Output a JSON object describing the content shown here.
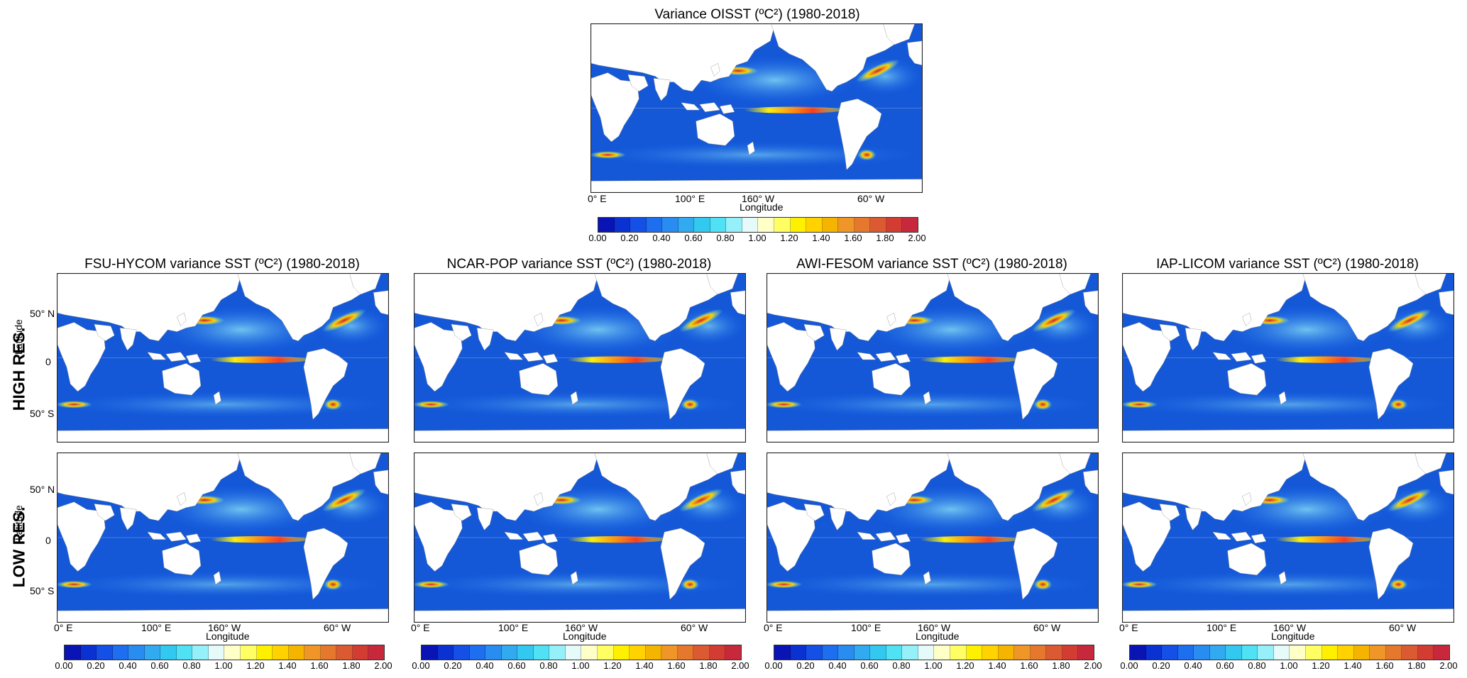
{
  "top_panel": {
    "title": "Variance OISST (ºC²) (1980-2018)",
    "x_ticks": [
      "0° E",
      "100° E",
      "160° W",
      "60° W"
    ],
    "x_label": "Longitude"
  },
  "panels": [
    {
      "id": "fsu-hycom",
      "title": "FSU-HYCOM variance SST (ºC²) (1980-2018)"
    },
    {
      "id": "ncar-pop",
      "title": "NCAR-POP variance SST (ºC²) (1980-2018)"
    },
    {
      "id": "awi-fesom",
      "title": "AWI-FESOM variance SST (ºC²) (1980-2018)"
    },
    {
      "id": "iap-licom",
      "title": "IAP-LICOM variance SST (ºC²) (1980-2018)"
    }
  ],
  "row_labels": {
    "high": "HIGH RES.",
    "low": "LOW RES."
  },
  "y_label": "Latitude",
  "y_ticks": [
    "50° N",
    "0",
    "50° S"
  ],
  "x_ticks": [
    "0° E",
    "100° E",
    "160° W",
    "60° W"
  ],
  "x_label": "Longitude",
  "colorbar": {
    "labels": [
      "0.00",
      "0.20",
      "0.40",
      "0.60",
      "0.80",
      "1.00",
      "1.20",
      "1.40",
      "1.60",
      "1.80",
      "2.00"
    ],
    "colors": [
      "#0a14b4",
      "#0a32d2",
      "#1450e6",
      "#1e6ef0",
      "#288cf0",
      "#32aaf0",
      "#32c8f0",
      "#50e1f5",
      "#96f0fa",
      "#e6fafa",
      "#ffffc8",
      "#ffff64",
      "#fff000",
      "#ffd200",
      "#f5b400",
      "#f09628",
      "#e6782d",
      "#dc5a32",
      "#d23c32",
      "#c8283c"
    ]
  },
  "style": {
    "ocean": "#1458d8",
    "land": "#ffffff",
    "equator_band": "#ff3c14"
  }
}
